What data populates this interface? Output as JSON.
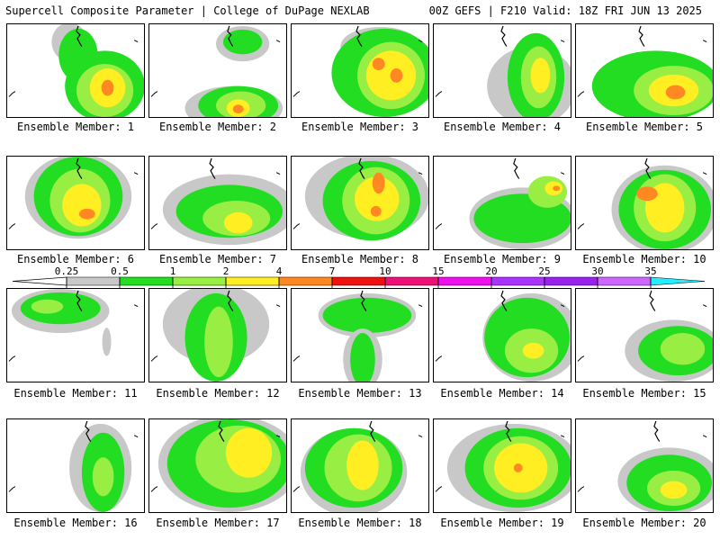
{
  "header": {
    "left": "Supercell Composite Parameter | College of DuPage NEXLAB",
    "right": "00Z GEFS | F210 Valid: 18Z FRI JUN 13 2025"
  },
  "colors": {
    "gray": "#c8c8c8",
    "green": "#22dd22",
    "lime": "#99ee44",
    "yellow": "#ffee22",
    "orange": "#ff8822",
    "red": "#ee1111",
    "deeppink": "#ee1177",
    "magenta": "#ee11ee",
    "purple": "#aa33ff",
    "violet": "#9922ee",
    "lavender": "#cc66ff",
    "cyan": "#22eeff"
  },
  "colorbar": {
    "labels": [
      "0.25",
      "0.5",
      "1",
      "2",
      "4",
      "7",
      "10",
      "15",
      "20",
      "25",
      "30",
      "35"
    ],
    "segment_colors": [
      "#c8c8c8",
      "#22dd22",
      "#99ee44",
      "#ffee22",
      "#ff8822",
      "#ee1111",
      "#ee1177",
      "#ee11ee",
      "#aa33ff",
      "#9922ee",
      "#cc66ff",
      "#22eeff"
    ]
  },
  "members": [
    {
      "label": "Ensemble Member: 1"
    },
    {
      "label": "Ensemble Member: 2"
    },
    {
      "label": "Ensemble Member: 3"
    },
    {
      "label": "Ensemble Member: 4"
    },
    {
      "label": "Ensemble Member: 5"
    },
    {
      "label": "Ensemble Member: 6"
    },
    {
      "label": "Ensemble Member: 7"
    },
    {
      "label": "Ensemble Member: 8"
    },
    {
      "label": "Ensemble Member: 9"
    },
    {
      "label": "Ensemble Member: 10"
    },
    {
      "label": "Ensemble Member: 11"
    },
    {
      "label": "Ensemble Member: 12"
    },
    {
      "label": "Ensemble Member: 13"
    },
    {
      "label": "Ensemble Member: 14"
    },
    {
      "label": "Ensemble Member: 15"
    },
    {
      "label": "Ensemble Member: 16"
    },
    {
      "label": "Ensemble Member: 17"
    },
    {
      "label": "Ensemble Member: 18"
    },
    {
      "label": "Ensemble Member: 19"
    },
    {
      "label": "Ensemble Member: 20"
    }
  ]
}
